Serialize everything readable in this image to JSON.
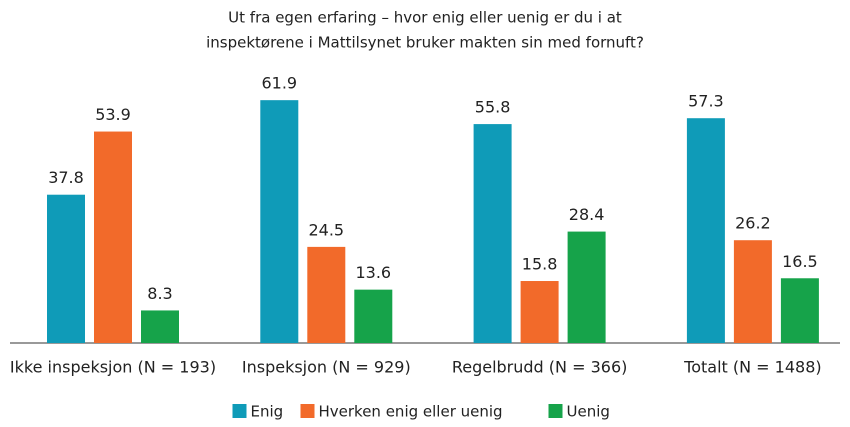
{
  "chart_data": {
    "type": "bar",
    "title": [
      "Ut fra egen erfaring – hvor enig eller uenig er du i at",
      "inspektørene i Mattilsynet bruker makten sin med fornuft?"
    ],
    "categories": [
      "Ikke inspeksjon (N = 193)",
      "Inspeksjon (N = 929)",
      "Regelbrudd (N = 366)",
      "Totalt (N = 1488)"
    ],
    "series": [
      {
        "name": "Enig",
        "color": "#0f9bb8",
        "values": [
          37.8,
          61.9,
          55.8,
          57.3
        ]
      },
      {
        "name": "Hverken enig eller uenig",
        "color": "#f26a2a",
        "values": [
          53.9,
          24.5,
          15.8,
          26.2
        ]
      },
      {
        "name": "Uenig",
        "color": "#16a34a",
        "values": [
          8.3,
          13.6,
          28.4,
          16.5
        ]
      }
    ],
    "ylim": [
      0,
      65
    ],
    "legend": "bottom"
  }
}
